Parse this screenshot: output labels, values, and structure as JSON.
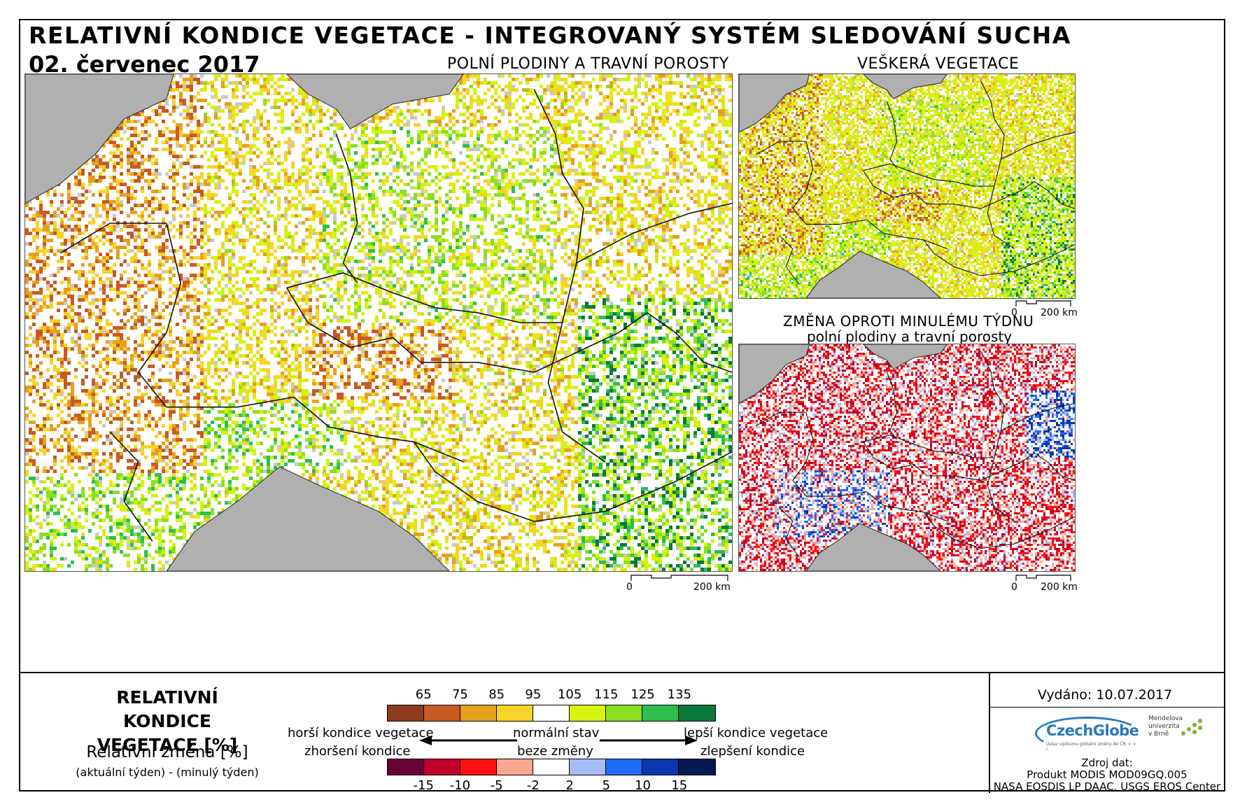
{
  "header": {
    "title": "RELATIVNÍ KONDICE VEGETACE - INTEGROVANÝ SYSTÉM SLEDOVÁNÍ SUCHA",
    "date": "02. červenec 2017"
  },
  "panels": {
    "main": {
      "title": "POLNÍ PLODINY A TRAVNÍ POROSTY",
      "scale_zero": "0",
      "scale_km": "200 km"
    },
    "all": {
      "title": "VEŠKERÁ VEGETACE",
      "scale_zero": "0",
      "scale_km": "200 km"
    },
    "change": {
      "title_line1": "ZMĚNA OPROTI MINULÉMU TÝDNU",
      "title_line2": "polní plodiny a travní porosty",
      "scale_zero": "0",
      "scale_km": "200 km"
    }
  },
  "legend": {
    "title": "RELATIVNÍ KONDICE VEGETACE [%]",
    "change_title": "Relativní změna [%]",
    "change_subtitle": "(aktuální týden) - (minulý týden)",
    "condition_ticks": [
      "65",
      "75",
      "85",
      "95",
      "105",
      "115",
      "125",
      "135"
    ],
    "condition_colors": [
      "#8e3b20",
      "#c85a22",
      "#e6a020",
      "#f6d428",
      "#ffffff",
      "#d6f20e",
      "#88e020",
      "#2cbf50",
      "#0a7a3a"
    ],
    "change_ticks": [
      "-15",
      "-10",
      "-5",
      "-2",
      "2",
      "5",
      "10",
      "15"
    ],
    "change_colors": [
      "#6a0038",
      "#c0002a",
      "#ff1010",
      "#f8a890",
      "#ffffff",
      "#a8bcf4",
      "#1e6cff",
      "#0838b0",
      "#041850"
    ],
    "worse": "horší kondice vegetace",
    "normal": "normální stav",
    "better": "lepší kondice vegetace",
    "worsening": "zhoršení kondice",
    "no_change": "beze změny",
    "improvement": "zlepšení kondice"
  },
  "footer": {
    "issued": "Vydáno: 10.07.2017",
    "logo_czechglobe": "CzechGlobe",
    "logo_czechglobe_sub": "Ústav výzkumu globální změny AV ČR, v. v. i.",
    "logo_mendel_line1": "Mendelova",
    "logo_mendel_line2": "univerzita",
    "logo_mendel_line3": "v Brně",
    "source_label": "Zdroj dat:",
    "source_line1": "Produkt MODIS MOD09GQ.005",
    "source_line2": "NASA EOSDIS LP DAAC, USGS EROS Center"
  }
}
